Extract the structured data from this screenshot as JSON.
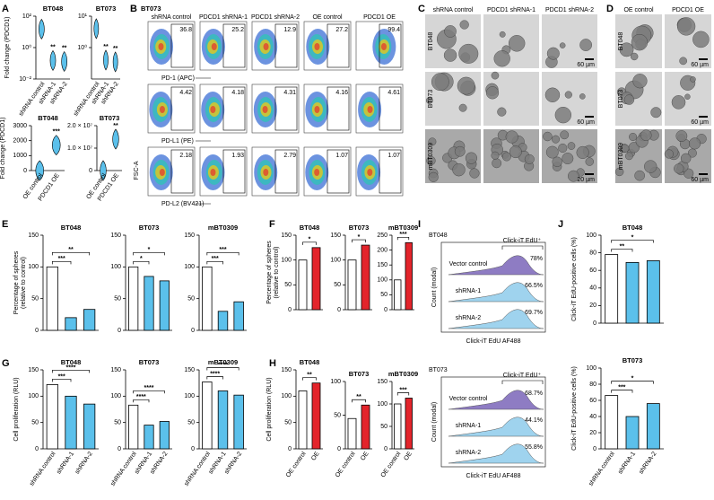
{
  "panel_labels": [
    "A",
    "B",
    "C",
    "D",
    "E",
    "F",
    "G",
    "H",
    "I",
    "J"
  ],
  "chart_data": [
    {
      "type": "violin",
      "title": "BT048",
      "y_label": [
        "Fold change (PDCD1)"
      ],
      "log_scale": true,
      "categories": [
        "shRNA control",
        "shRNA-1",
        "shRNA-2"
      ],
      "values": [
        15,
        0.15,
        0.13
      ],
      "colors": [
        "#5bc0eb",
        "#5bc0eb",
        "#5bc0eb"
      ],
      "ylim": [
        0.01,
        100
      ],
      "yticks": [
        {
          "value": 100,
          "label": "10²"
        },
        {
          "value": 1,
          "label": "10⁰"
        },
        {
          "value": 0.01,
          "label": "10⁻²"
        }
      ],
      "significance": [
        "**",
        "**"
      ]
    },
    {
      "type": "violin",
      "title": "BT073",
      "log_scale": true,
      "categories": [
        "shRNA control",
        "shRNA-1",
        "shRNA-2"
      ],
      "values": [
        4,
        0.4,
        0.35
      ],
      "colors": [
        "#5bc0eb",
        "#5bc0eb",
        "#5bc0eb"
      ],
      "ylim": [
        0.1,
        10
      ],
      "yticks": [
        {
          "value": 10,
          "label": "10¹"
        },
        {
          "value": 1,
          "label": "10⁰"
        }
      ],
      "significance": [
        "**",
        "**"
      ]
    },
    {
      "type": "violin",
      "title": "BT048",
      "y_label": [
        "Fold change (PDCD1)"
      ],
      "categories": [
        "OE control",
        "PDCD1 OE"
      ],
      "values": [
        1,
        1700
      ],
      "colors": [
        "#5bc0eb",
        "#5bc0eb"
      ],
      "ylim": [
        0,
        3000
      ],
      "yticks": [
        0,
        1000,
        2000,
        3000
      ],
      "significance": [
        "***"
      ]
    },
    {
      "type": "violin",
      "title": "BT073",
      "categories": [
        "OE control",
        "PDCD1 OE"
      ],
      "values": [
        1,
        14000000
      ],
      "colors": [
        "#5bc0eb",
        "#5bc0eb"
      ],
      "ylim": [
        0,
        20000000
      ],
      "yticks": [
        0,
        {
          "value": 10000000,
          "label": "1.0 × 10⁷"
        },
        {
          "value": 20000000,
          "label": "2.0 × 10⁷"
        }
      ],
      "significance": [
        "**"
      ]
    },
    {
      "type": "bar",
      "title": "BT048",
      "y_label": [
        "Percentage of spheres",
        "(relative to control)"
      ],
      "values": [
        100,
        20,
        33
      ],
      "colors": [
        "#ffffff",
        "#5bc0eb",
        "#5bc0eb"
      ],
      "ylim": [
        0,
        150
      ],
      "yticks": [
        0,
        50,
        100,
        150
      ],
      "significance": [
        "***",
        "**"
      ]
    },
    {
      "type": "bar",
      "title": "BT073",
      "values": [
        100,
        85,
        78
      ],
      "colors": [
        "#ffffff",
        "#5bc0eb",
        "#5bc0eb"
      ],
      "ylim": [
        0,
        150
      ],
      "yticks": [
        0,
        50,
        100,
        150
      ],
      "significance": [
        "*",
        "*"
      ]
    },
    {
      "type": "bar",
      "title": "mBT0309",
      "values": [
        100,
        30,
        45
      ],
      "colors": [
        "#ffffff",
        "#5bc0eb",
        "#5bc0eb"
      ],
      "ylim": [
        0,
        150
      ],
      "yticks": [
        0,
        50,
        100,
        150
      ],
      "significance": [
        "***",
        "***"
      ]
    },
    {
      "type": "bar",
      "title": "BT048",
      "y_label": [
        "Percentage of spheres",
        "(relative to control)"
      ],
      "values": [
        100,
        125
      ],
      "colors": [
        "#ffffff",
        "#e3242b"
      ],
      "ylim": [
        0,
        150
      ],
      "yticks": [
        0,
        50,
        100,
        150
      ],
      "significance": [
        "*"
      ]
    },
    {
      "type": "bar",
      "title": "BT073",
      "values": [
        100,
        130
      ],
      "colors": [
        "#ffffff",
        "#e3242b"
      ],
      "ylim": [
        0,
        150
      ],
      "yticks": [
        0,
        50,
        100,
        150
      ],
      "significance": [
        "*"
      ]
    },
    {
      "type": "bar",
      "title": "mBT0309",
      "values": [
        100,
        225
      ],
      "colors": [
        "#ffffff",
        "#e3242b"
      ],
      "ylim": [
        0,
        250
      ],
      "yticks": [
        0,
        50,
        100,
        150,
        200,
        250
      ],
      "significance": [
        "***"
      ]
    },
    {
      "type": "bar",
      "title": "BT048",
      "y_label": [
        "Cell proliferation (RLU)"
      ],
      "categories": [
        "shRNA control",
        "shRNA-1",
        "shRNA-2"
      ],
      "values": [
        122,
        100,
        85
      ],
      "colors": [
        "#ffffff",
        "#5bc0eb",
        "#5bc0eb"
      ],
      "ylim": [
        0,
        150
      ],
      "yticks": [
        0,
        50,
        100,
        150
      ],
      "significance": [
        "***",
        "****"
      ]
    },
    {
      "type": "bar",
      "title": "BT073",
      "categories": [
        "shRNA control",
        "shRNA-1",
        "shRNA-2"
      ],
      "values": [
        83,
        45,
        52
      ],
      "colors": [
        "#ffffff",
        "#5bc0eb",
        "#5bc0eb"
      ],
      "ylim": [
        0,
        150
      ],
      "yticks": [
        0,
        50,
        100,
        150
      ],
      "significance": [
        "****",
        "****"
      ]
    },
    {
      "type": "bar",
      "title": "mBT0309",
      "categories": [
        "shRNA control",
        "shRNA-1",
        "shRNA-2"
      ],
      "values": [
        127,
        110,
        102
      ],
      "colors": [
        "#ffffff",
        "#5bc0eb",
        "#5bc0eb"
      ],
      "ylim": [
        0,
        150
      ],
      "yticks": [
        0,
        50,
        100,
        150
      ],
      "significance": [
        "****",
        "****"
      ]
    },
    {
      "type": "bar",
      "title": "BT048",
      "y_label": [
        "Cell proliferation (RLU)"
      ],
      "categories": [
        "OE control",
        "OE"
      ],
      "values": [
        110,
        125
      ],
      "colors": [
        "#ffffff",
        "#e3242b"
      ],
      "ylim": [
        0,
        150
      ],
      "yticks": [
        0,
        50,
        100,
        150
      ],
      "significance": [
        "**"
      ]
    },
    {
      "type": "bar",
      "title": "BT073",
      "categories": [
        "OE control",
        "OE"
      ],
      "values": [
        45,
        65
      ],
      "colors": [
        "#ffffff",
        "#e3242b"
      ],
      "ylim": [
        0,
        100
      ],
      "yticks": [
        0,
        50,
        100
      ],
      "significance": [
        "**"
      ]
    },
    {
      "type": "bar",
      "title": "mBT0309",
      "categories": [
        "OE control",
        "OE"
      ],
      "values": [
        100,
        113
      ],
      "colors": [
        "#ffffff",
        "#e3242b"
      ],
      "ylim": [
        0,
        150
      ],
      "yticks": [
        0,
        50,
        100,
        150
      ],
      "significance": [
        "***"
      ]
    },
    {
      "type": "bar",
      "title": "BT048",
      "y_label": [
        "Click-iT EdU-positive cells (%)"
      ],
      "values": [
        78,
        69,
        71
      ],
      "colors": [
        "#ffffff",
        "#5bc0eb",
        "#5bc0eb"
      ],
      "ylim": [
        0,
        100
      ],
      "yticks": [
        0,
        20,
        40,
        60,
        80,
        100
      ],
      "significance": [
        "**",
        "*"
      ]
    },
    {
      "type": "bar",
      "title": "BT073",
      "y_label": [
        "Click-iT EdU-positive cells (%)"
      ],
      "categories": [
        "shRNA control",
        "shRNA-1",
        "shRNA-2"
      ],
      "values": [
        66,
        40,
        56
      ],
      "colors": [
        "#ffffff",
        "#5bc0eb",
        "#5bc0eb"
      ],
      "ylim": [
        0,
        100
      ],
      "yticks": [
        0,
        20,
        40,
        60,
        80,
        100
      ],
      "significance": [
        "***",
        "*"
      ]
    }
  ],
  "flow": {
    "title": "BT073",
    "y_label": "FSC-A",
    "columns": [
      "shRNA control",
      "PDCD1 shRNA-1",
      "PDCD1 shRNA-2",
      "OE control",
      "PDCD1 OE"
    ],
    "rows": [
      {
        "marker": "PD-1 (APC)",
        "percents": [
          "36.8",
          "25.2",
          "12.9",
          "27.2",
          "99.4"
        ]
      },
      {
        "marker": "PD-L1 (PE)",
        "percents": [
          "4.42",
          "4.18",
          "4.31",
          "4.16",
          "4.61"
        ]
      },
      {
        "marker": "PD-L2 (BV421)",
        "percents": [
          "2.18",
          "1.93",
          "2.79",
          "1.07",
          "1.07"
        ]
      }
    ]
  },
  "spheres_c": {
    "columns": [
      "shRNA control",
      "PDCD1 shRNA-1",
      "PDCD1 shRNA-2"
    ],
    "rows": [
      "BT048",
      "BT073",
      "mBT0309"
    ],
    "scale_bars": [
      "60 µm",
      "60 µm",
      "20 µm"
    ]
  },
  "spheres_d": {
    "columns": [
      "OE control",
      "PDCD1 OE"
    ],
    "rows": [
      "BT048",
      "BT073",
      "mBT0309"
    ],
    "scale_bars": [
      "60 µm",
      "60 µm",
      "60 µm"
    ]
  },
  "edu_histograms": {
    "y_label": "Count (modal)",
    "x_label": "Click-iT EdU AF488",
    "gate": "Click-iT EdU⁺",
    "panels": [
      {
        "title": "BT048",
        "rows": [
          {
            "name": "Vector control",
            "percent": "78%"
          },
          {
            "name": "shRNA-1",
            "percent": "66.5%"
          },
          {
            "name": "shRNA-2",
            "percent": "69.7%"
          }
        ]
      },
      {
        "title": "BT073",
        "rows": [
          {
            "name": "Vector control",
            "percent": "68.7%"
          },
          {
            "name": "shRNA-1",
            "percent": "44.1%"
          },
          {
            "name": "shRNA-2",
            "percent": "55.8%"
          }
        ]
      }
    ]
  }
}
